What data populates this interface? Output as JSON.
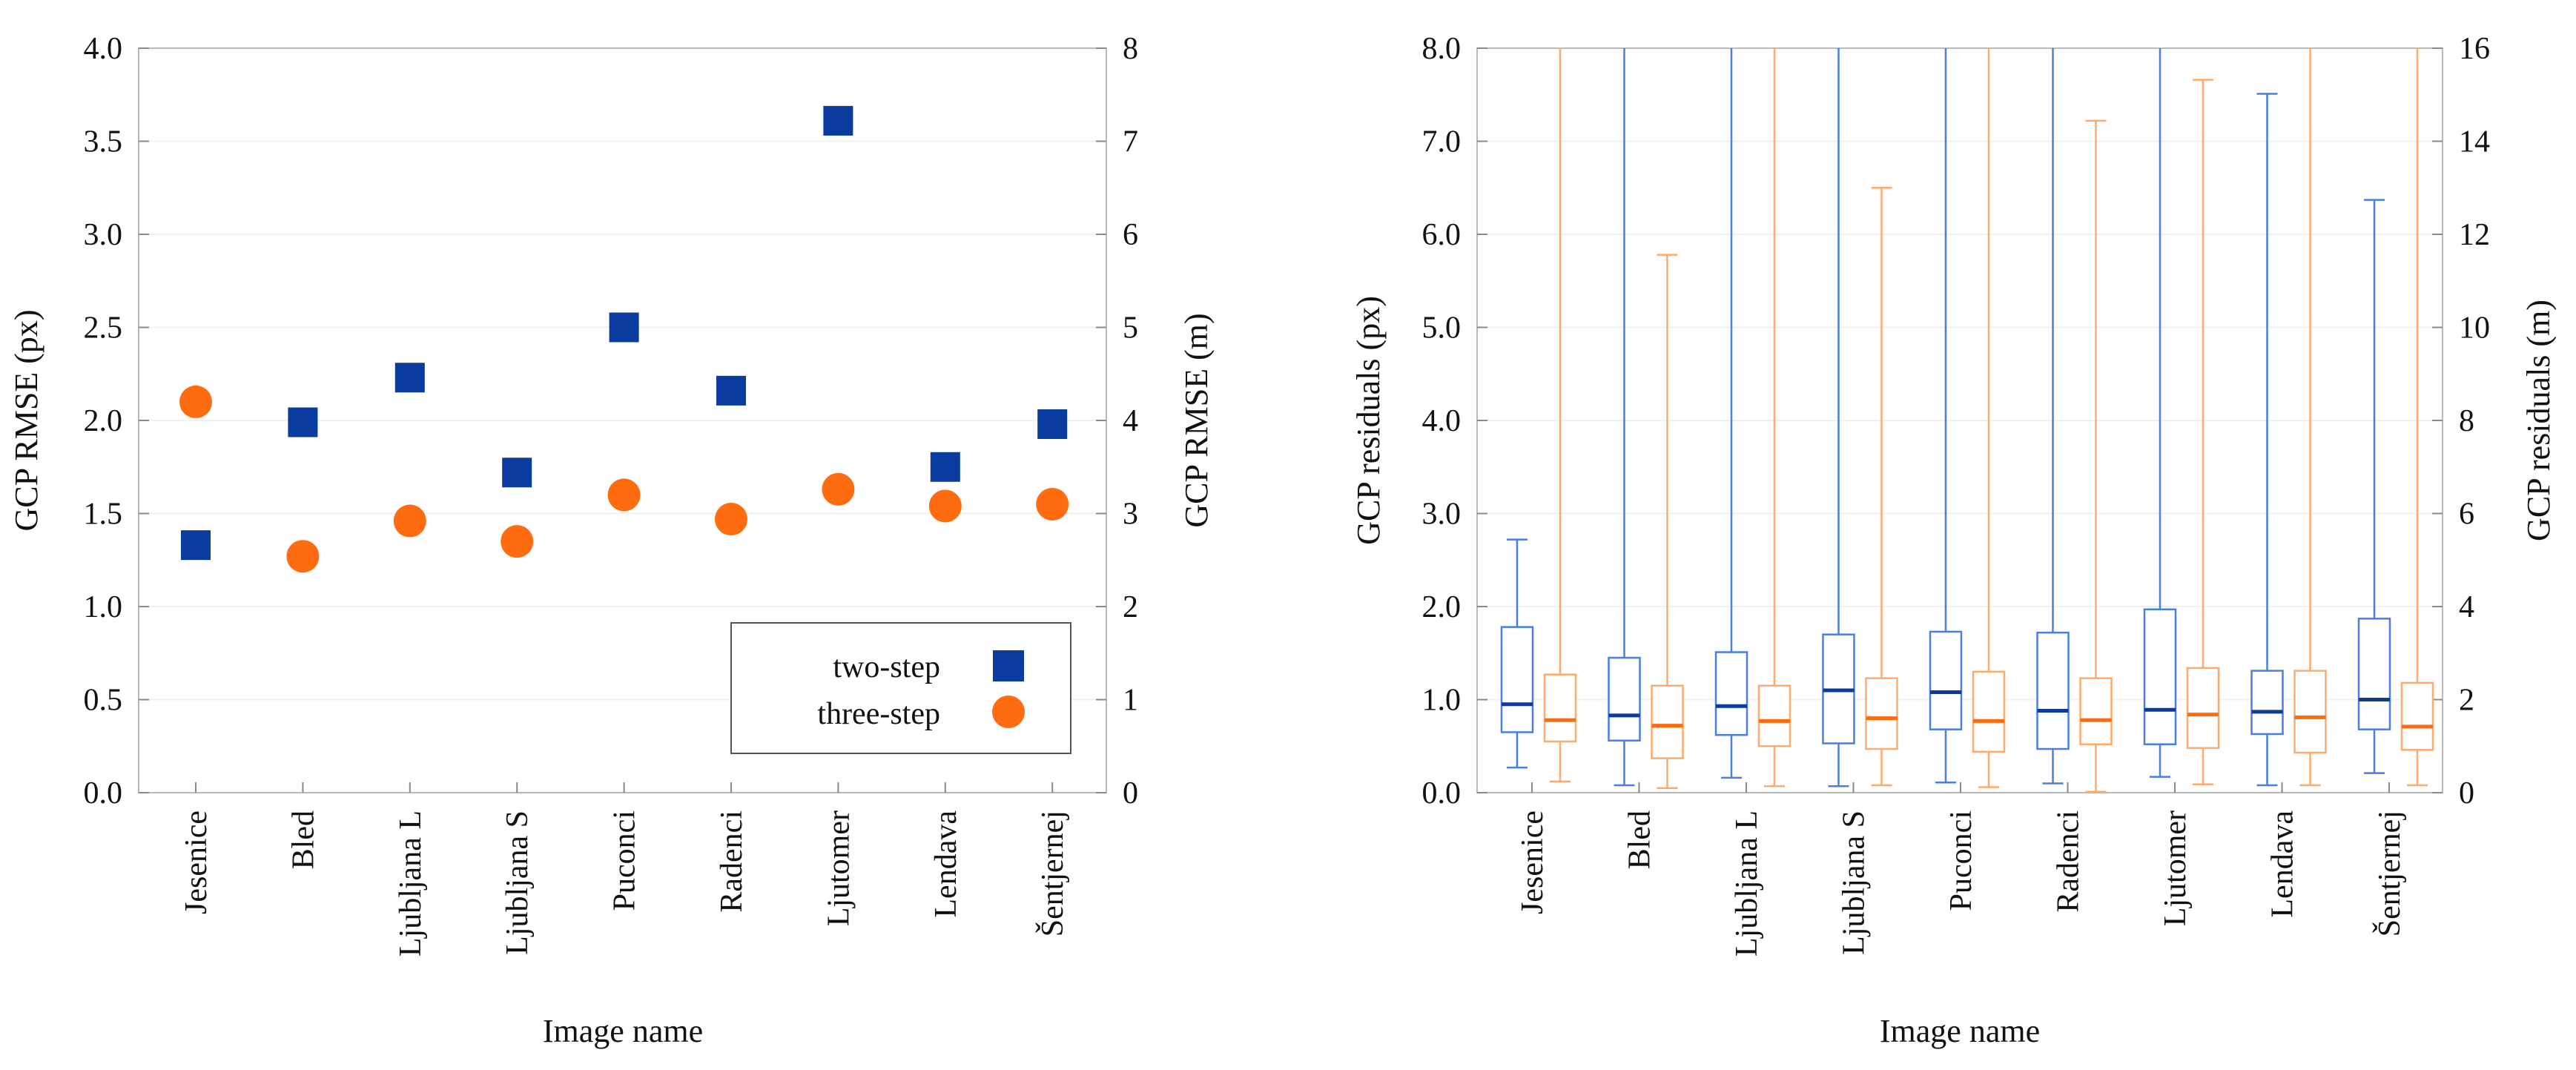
{
  "colors": {
    "two_step": "#0a3ca0",
    "three_step": "#ff6b0f",
    "box_blue": "#4a7fe0",
    "box_orange": "#ffaa6b"
  },
  "chart_data": [
    {
      "type": "scatter",
      "categories": [
        "Jesenice",
        "Bled",
        "Ljubljana L",
        "Ljubljana S",
        "Puconci",
        "Radenci",
        "Ljutomer",
        "Lendava",
        "Šentjernej"
      ],
      "series": [
        {
          "name": "two-step",
          "marker": "square",
          "color": "#0a3ca0",
          "values": [
            1.33,
            1.99,
            2.23,
            1.72,
            2.5,
            2.16,
            3.61,
            1.75,
            1.98
          ]
        },
        {
          "name": "three-step",
          "marker": "circle",
          "color": "#ff6b0f",
          "values": [
            2.1,
            1.27,
            1.46,
            1.35,
            1.6,
            1.47,
            1.63,
            1.54,
            1.55
          ]
        }
      ],
      "xlabel": "Image name",
      "ylabel": "GCP RMSE (px)",
      "ylabel_right": "GCP RMSE (m)",
      "ylim": [
        0,
        4
      ],
      "ylim_right": [
        0,
        8
      ],
      "yticks": [
        "0.0",
        "0.5",
        "1.0",
        "1.5",
        "2.0",
        "2.5",
        "3.0",
        "3.5",
        "4.0"
      ],
      "yticks_right": [
        "0",
        "1",
        "2",
        "3",
        "4",
        "5",
        "6",
        "7",
        "8"
      ],
      "legend_position": "bottom-right",
      "grid": true
    },
    {
      "type": "box",
      "categories": [
        "Jesenice",
        "Bled",
        "Ljubljana L",
        "Ljubljana S",
        "Puconci",
        "Radenci",
        "Ljutomer",
        "Lendava",
        "Šentjernej"
      ],
      "series": [
        {
          "name": "two-step",
          "color": "#4a7fe0",
          "median_color": "#0a3ca0",
          "boxes": [
            {
              "min": 0.27,
              "q1": 0.65,
              "median": 0.95,
              "q3": 1.78,
              "max": 2.72
            },
            {
              "min": 0.08,
              "q1": 0.56,
              "median": 0.83,
              "q3": 1.45,
              "max": 8.0
            },
            {
              "min": 0.16,
              "q1": 0.62,
              "median": 0.93,
              "q3": 1.51,
              "max": 8.0
            },
            {
              "min": 0.07,
              "q1": 0.53,
              "median": 1.1,
              "q3": 1.7,
              "max": 8.0
            },
            {
              "min": 0.11,
              "q1": 0.68,
              "median": 1.08,
              "q3": 1.73,
              "max": 8.0
            },
            {
              "min": 0.1,
              "q1": 0.47,
              "median": 0.88,
              "q3": 1.72,
              "max": 8.0
            },
            {
              "min": 0.17,
              "q1": 0.52,
              "median": 0.89,
              "q3": 1.97,
              "max": 8.0
            },
            {
              "min": 0.08,
              "q1": 0.63,
              "median": 0.87,
              "q3": 1.31,
              "max": 7.51
            },
            {
              "min": 0.21,
              "q1": 0.68,
              "median": 1.0,
              "q3": 1.87,
              "max": 6.37
            }
          ]
        },
        {
          "name": "three-step",
          "color": "#ffaa6b",
          "median_color": "#ff6b0f",
          "boxes": [
            {
              "min": 0.12,
              "q1": 0.55,
              "median": 0.78,
              "q3": 1.27,
              "max": 8.0
            },
            {
              "min": 0.05,
              "q1": 0.37,
              "median": 0.72,
              "q3": 1.15,
              "max": 5.78
            },
            {
              "min": 0.07,
              "q1": 0.5,
              "median": 0.77,
              "q3": 1.15,
              "max": 8.0
            },
            {
              "min": 0.08,
              "q1": 0.47,
              "median": 0.8,
              "q3": 1.23,
              "max": 6.5
            },
            {
              "min": 0.06,
              "q1": 0.44,
              "median": 0.77,
              "q3": 1.3,
              "max": 8.0
            },
            {
              "min": 0.01,
              "q1": 0.52,
              "median": 0.78,
              "q3": 1.23,
              "max": 7.22
            },
            {
              "min": 0.09,
              "q1": 0.48,
              "median": 0.84,
              "q3": 1.34,
              "max": 7.66
            },
            {
              "min": 0.08,
              "q1": 0.43,
              "median": 0.81,
              "q3": 1.31,
              "max": 8.0
            },
            {
              "min": 0.08,
              "q1": 0.46,
              "median": 0.71,
              "q3": 1.18,
              "max": 8.0
            }
          ]
        }
      ],
      "xlabel": "Image name",
      "ylabel": "GCP residuals (px)",
      "ylabel_right": "GCP residuals (m)",
      "ylim": [
        0,
        8
      ],
      "ylim_right": [
        0,
        16
      ],
      "yticks": [
        "0.0",
        "1.0",
        "2.0",
        "3.0",
        "4.0",
        "5.0",
        "6.0",
        "7.0",
        "8.0"
      ],
      "yticks_right": [
        "0",
        "2",
        "4",
        "6",
        "8",
        "10",
        "12",
        "14",
        "16"
      ],
      "grid": true
    }
  ]
}
